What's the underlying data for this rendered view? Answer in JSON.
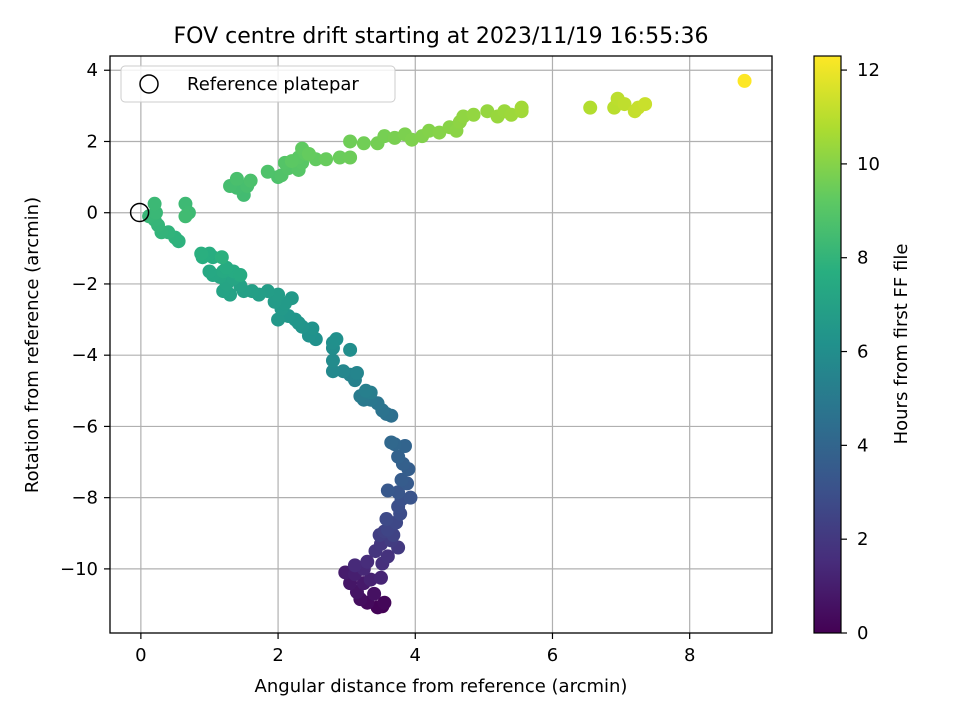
{
  "chart_data": {
    "type": "scatter",
    "title": "FOV centre drift starting at 2023/11/19 16:55:36",
    "xlabel": "Angular distance from reference (arcmin)",
    "ylabel": "Rotation from reference (arcmin)",
    "colorbar_label": "Hours from first FF file",
    "xlim": [
      -0.45,
      9.2
    ],
    "ylim": [
      -11.8,
      4.4
    ],
    "clim": [
      0,
      12.3
    ],
    "xticks": [
      0,
      2,
      4,
      6,
      8
    ],
    "yticks": [
      4,
      2,
      0,
      -2,
      -4,
      -6,
      -8,
      -10
    ],
    "cticks": [
      0,
      2,
      4,
      6,
      8,
      10,
      12
    ],
    "xtick_labels": [
      "0",
      "2",
      "4",
      "6",
      "8"
    ],
    "ytick_labels": [
      "4",
      "2",
      "0",
      "−2",
      "−4",
      "−6",
      "−8",
      "−10"
    ],
    "ctick_labels": [
      "0",
      "2",
      "4",
      "6",
      "8",
      "10",
      "12"
    ],
    "grid": true,
    "colormap": "viridis",
    "legend": {
      "placement": "upper-left",
      "entries": [
        {
          "label": "Reference platepar",
          "marker": "open-circle"
        }
      ]
    },
    "reference_point": {
      "x": 0,
      "y": 0
    },
    "points": [
      {
        "x": 3.52,
        "y": -11.05,
        "h": 0.05
      },
      {
        "x": 3.45,
        "y": -11.08,
        "h": 0.1
      },
      {
        "x": 3.55,
        "y": -10.95,
        "h": 0.2
      },
      {
        "x": 3.3,
        "y": -10.95,
        "h": 0.3
      },
      {
        "x": 3.2,
        "y": -10.85,
        "h": 0.45
      },
      {
        "x": 3.4,
        "y": -10.7,
        "h": 0.55
      },
      {
        "x": 3.15,
        "y": -10.65,
        "h": 0.65
      },
      {
        "x": 3.05,
        "y": -10.4,
        "h": 0.75
      },
      {
        "x": 3.25,
        "y": -10.4,
        "h": 0.85
      },
      {
        "x": 2.98,
        "y": -10.1,
        "h": 0.95
      },
      {
        "x": 3.12,
        "y": -10.15,
        "h": 1.05
      },
      {
        "x": 3.35,
        "y": -10.3,
        "h": 1.15
      },
      {
        "x": 3.5,
        "y": -10.25,
        "h": 1.25
      },
      {
        "x": 3.25,
        "y": -10.0,
        "h": 1.35
      },
      {
        "x": 3.12,
        "y": -9.9,
        "h": 1.45
      },
      {
        "x": 3.3,
        "y": -9.8,
        "h": 1.55
      },
      {
        "x": 3.52,
        "y": -9.85,
        "h": 1.65
      },
      {
        "x": 3.6,
        "y": -9.65,
        "h": 1.75
      },
      {
        "x": 3.42,
        "y": -9.5,
        "h": 1.85
      },
      {
        "x": 3.5,
        "y": -9.3,
        "h": 1.95
      },
      {
        "x": 3.75,
        "y": -9.4,
        "h": 2.05
      },
      {
        "x": 3.65,
        "y": -9.2,
        "h": 2.15
      },
      {
        "x": 3.48,
        "y": -9.05,
        "h": 2.25
      },
      {
        "x": 3.55,
        "y": -8.95,
        "h": 2.35
      },
      {
        "x": 3.68,
        "y": -9.05,
        "h": 2.45
      },
      {
        "x": 3.6,
        "y": -8.9,
        "h": 2.55
      },
      {
        "x": 3.72,
        "y": -8.7,
        "h": 2.65
      },
      {
        "x": 3.58,
        "y": -8.6,
        "h": 2.75
      },
      {
        "x": 3.78,
        "y": -8.45,
        "h": 2.85
      },
      {
        "x": 3.75,
        "y": -8.25,
        "h": 2.95
      },
      {
        "x": 3.8,
        "y": -8.05,
        "h": 3.05
      },
      {
        "x": 3.93,
        "y": -8.0,
        "h": 3.15
      },
      {
        "x": 3.75,
        "y": -7.85,
        "h": 3.25
      },
      {
        "x": 3.6,
        "y": -7.8,
        "h": 3.35
      },
      {
        "x": 3.88,
        "y": -7.6,
        "h": 3.45
      },
      {
        "x": 3.8,
        "y": -7.5,
        "h": 3.55
      },
      {
        "x": 3.9,
        "y": -7.2,
        "h": 3.65
      },
      {
        "x": 3.82,
        "y": -7.05,
        "h": 3.75
      },
      {
        "x": 3.75,
        "y": -6.85,
        "h": 3.85
      },
      {
        "x": 3.85,
        "y": -6.55,
        "h": 3.95
      },
      {
        "x": 3.7,
        "y": -6.5,
        "h": 4.05
      },
      {
        "x": 3.65,
        "y": -6.45,
        "h": 4.15
      },
      {
        "x": 3.65,
        "y": -5.7,
        "h": 4.45
      },
      {
        "x": 3.58,
        "y": -5.65,
        "h": 4.55
      },
      {
        "x": 3.52,
        "y": -5.55,
        "h": 4.65
      },
      {
        "x": 3.45,
        "y": -5.35,
        "h": 4.75
      },
      {
        "x": 3.35,
        "y": -5.25,
        "h": 4.85
      },
      {
        "x": 3.25,
        "y": -5.25,
        "h": 4.95
      },
      {
        "x": 3.2,
        "y": -5.15,
        "h": 5.05
      },
      {
        "x": 3.35,
        "y": -5.05,
        "h": 5.15
      },
      {
        "x": 3.28,
        "y": -5.0,
        "h": 5.25
      },
      {
        "x": 3.12,
        "y": -4.7,
        "h": 5.35
      },
      {
        "x": 3.05,
        "y": -4.55,
        "h": 5.45
      },
      {
        "x": 3.15,
        "y": -4.5,
        "h": 5.55
      },
      {
        "x": 2.95,
        "y": -4.45,
        "h": 5.65
      },
      {
        "x": 2.8,
        "y": -4.45,
        "h": 5.75
      },
      {
        "x": 2.8,
        "y": -4.15,
        "h": 5.85
      },
      {
        "x": 2.8,
        "y": -3.8,
        "h": 5.95
      },
      {
        "x": 3.05,
        "y": -3.85,
        "h": 6.0
      },
      {
        "x": 2.8,
        "y": -3.65,
        "h": 6.05
      },
      {
        "x": 2.85,
        "y": -3.55,
        "h": 6.1
      },
      {
        "x": 2.55,
        "y": -3.55,
        "h": 6.15
      },
      {
        "x": 2.45,
        "y": -3.45,
        "h": 6.2
      },
      {
        "x": 2.5,
        "y": -3.25,
        "h": 6.25
      },
      {
        "x": 2.35,
        "y": -3.2,
        "h": 6.3
      },
      {
        "x": 2.3,
        "y": -3.1,
        "h": 6.35
      },
      {
        "x": 2.25,
        "y": -3.0,
        "h": 6.4
      },
      {
        "x": 2.15,
        "y": -2.9,
        "h": 6.45
      },
      {
        "x": 2.0,
        "y": -3.0,
        "h": 6.5
      },
      {
        "x": 2.05,
        "y": -2.7,
        "h": 6.55
      },
      {
        "x": 2.2,
        "y": -2.4,
        "h": 6.6
      },
      {
        "x": 2.1,
        "y": -2.55,
        "h": 6.65
      },
      {
        "x": 1.95,
        "y": -2.5,
        "h": 6.7
      },
      {
        "x": 2.0,
        "y": -2.3,
        "h": 6.75
      },
      {
        "x": 1.85,
        "y": -2.2,
        "h": 6.8
      },
      {
        "x": 1.72,
        "y": -2.3,
        "h": 6.85
      },
      {
        "x": 1.62,
        "y": -2.2,
        "h": 6.9
      },
      {
        "x": 1.5,
        "y": -2.2,
        "h": 6.95
      },
      {
        "x": 1.45,
        "y": -2.05,
        "h": 7.0
      },
      {
        "x": 1.3,
        "y": -2.3,
        "h": 7.05
      },
      {
        "x": 1.2,
        "y": -2.2,
        "h": 7.1
      },
      {
        "x": 1.25,
        "y": -2.0,
        "h": 7.15
      },
      {
        "x": 1.35,
        "y": -1.85,
        "h": 7.2
      },
      {
        "x": 1.15,
        "y": -1.8,
        "h": 7.25
      },
      {
        "x": 1.05,
        "y": -1.75,
        "h": 7.3
      },
      {
        "x": 1.0,
        "y": -1.65,
        "h": 7.35
      },
      {
        "x": 1.2,
        "y": -1.65,
        "h": 7.4
      },
      {
        "x": 1.35,
        "y": -1.65,
        "h": 7.45
      },
      {
        "x": 1.45,
        "y": -1.75,
        "h": 7.5
      },
      {
        "x": 1.25,
        "y": -1.55,
        "h": 7.55
      },
      {
        "x": 1.05,
        "y": -1.25,
        "h": 7.6
      },
      {
        "x": 1.0,
        "y": -1.15,
        "h": 7.65
      },
      {
        "x": 0.9,
        "y": -1.25,
        "h": 7.7
      },
      {
        "x": 0.88,
        "y": -1.15,
        "h": 7.75
      },
      {
        "x": 1.18,
        "y": -1.25,
        "h": 7.8
      },
      {
        "x": 0.55,
        "y": -0.8,
        "h": 7.85
      },
      {
        "x": 0.5,
        "y": -0.7,
        "h": 7.9
      },
      {
        "x": 0.4,
        "y": -0.55,
        "h": 7.95
      },
      {
        "x": 0.3,
        "y": -0.55,
        "h": 8.0
      },
      {
        "x": 0.25,
        "y": -0.35,
        "h": 8.05
      },
      {
        "x": 0.2,
        "y": -0.2,
        "h": 8.1
      },
      {
        "x": 0.12,
        "y": -0.1,
        "h": 8.15
      },
      {
        "x": 0.22,
        "y": 0.0,
        "h": 8.2
      },
      {
        "x": 0.2,
        "y": 0.25,
        "h": 8.25
      },
      {
        "x": 0.65,
        "y": 0.25,
        "h": 8.3
      },
      {
        "x": 0.7,
        "y": 0.0,
        "h": 8.35
      },
      {
        "x": 0.65,
        "y": -0.1,
        "h": 8.4
      },
      {
        "x": 1.5,
        "y": 0.5,
        "h": 8.45
      },
      {
        "x": 1.4,
        "y": 0.7,
        "h": 8.5
      },
      {
        "x": 1.3,
        "y": 0.75,
        "h": 8.55
      },
      {
        "x": 1.55,
        "y": 0.75,
        "h": 8.6
      },
      {
        "x": 1.4,
        "y": 0.95,
        "h": 8.65
      },
      {
        "x": 1.6,
        "y": 0.9,
        "h": 8.7
      },
      {
        "x": 2.0,
        "y": 1.0,
        "h": 8.75
      },
      {
        "x": 1.85,
        "y": 1.15,
        "h": 8.8
      },
      {
        "x": 2.05,
        "y": 1.05,
        "h": 8.85
      },
      {
        "x": 2.15,
        "y": 1.25,
        "h": 8.9
      },
      {
        "x": 2.1,
        "y": 1.4,
        "h": 8.95
      },
      {
        "x": 2.3,
        "y": 1.2,
        "h": 9.0
      },
      {
        "x": 2.35,
        "y": 1.4,
        "h": 9.05
      },
      {
        "x": 2.3,
        "y": 1.55,
        "h": 9.1
      },
      {
        "x": 2.2,
        "y": 1.45,
        "h": 9.15
      },
      {
        "x": 2.4,
        "y": 1.65,
        "h": 9.2
      },
      {
        "x": 2.35,
        "y": 1.8,
        "h": 9.25
      },
      {
        "x": 2.55,
        "y": 1.5,
        "h": 9.3
      },
      {
        "x": 2.45,
        "y": 1.65,
        "h": 9.35
      },
      {
        "x": 2.7,
        "y": 1.5,
        "h": 9.4
      },
      {
        "x": 2.9,
        "y": 1.55,
        "h": 9.45
      },
      {
        "x": 3.05,
        "y": 1.55,
        "h": 9.5
      },
      {
        "x": 3.05,
        "y": 2.0,
        "h": 9.55
      },
      {
        "x": 3.25,
        "y": 1.95,
        "h": 9.6
      },
      {
        "x": 3.45,
        "y": 1.95,
        "h": 9.65
      },
      {
        "x": 3.55,
        "y": 2.15,
        "h": 9.7
      },
      {
        "x": 3.7,
        "y": 2.1,
        "h": 9.75
      },
      {
        "x": 3.85,
        "y": 2.2,
        "h": 9.8
      },
      {
        "x": 3.95,
        "y": 2.05,
        "h": 9.85
      },
      {
        "x": 4.1,
        "y": 2.15,
        "h": 9.9
      },
      {
        "x": 4.2,
        "y": 2.3,
        "h": 9.95
      },
      {
        "x": 4.35,
        "y": 2.25,
        "h": 10.0
      },
      {
        "x": 4.5,
        "y": 2.4,
        "h": 10.05
      },
      {
        "x": 4.6,
        "y": 2.3,
        "h": 10.1
      },
      {
        "x": 4.65,
        "y": 2.55,
        "h": 10.15
      },
      {
        "x": 4.7,
        "y": 2.7,
        "h": 10.2
      },
      {
        "x": 4.85,
        "y": 2.75,
        "h": 10.25
      },
      {
        "x": 5.05,
        "y": 2.85,
        "h": 10.3
      },
      {
        "x": 5.2,
        "y": 2.7,
        "h": 10.35
      },
      {
        "x": 5.3,
        "y": 2.85,
        "h": 10.4
      },
      {
        "x": 5.4,
        "y": 2.75,
        "h": 10.45
      },
      {
        "x": 5.55,
        "y": 2.85,
        "h": 10.5
      },
      {
        "x": 5.55,
        "y": 2.95,
        "h": 10.55
      },
      {
        "x": 6.55,
        "y": 2.95,
        "h": 10.85
      },
      {
        "x": 6.9,
        "y": 2.95,
        "h": 11.0
      },
      {
        "x": 6.95,
        "y": 3.2,
        "h": 11.05
      },
      {
        "x": 7.05,
        "y": 3.05,
        "h": 11.1
      },
      {
        "x": 7.2,
        "y": 2.85,
        "h": 11.2
      },
      {
        "x": 7.25,
        "y": 2.95,
        "h": 11.25
      },
      {
        "x": 7.35,
        "y": 3.05,
        "h": 11.3
      },
      {
        "x": 8.8,
        "y": 3.7,
        "h": 12.3
      }
    ]
  }
}
